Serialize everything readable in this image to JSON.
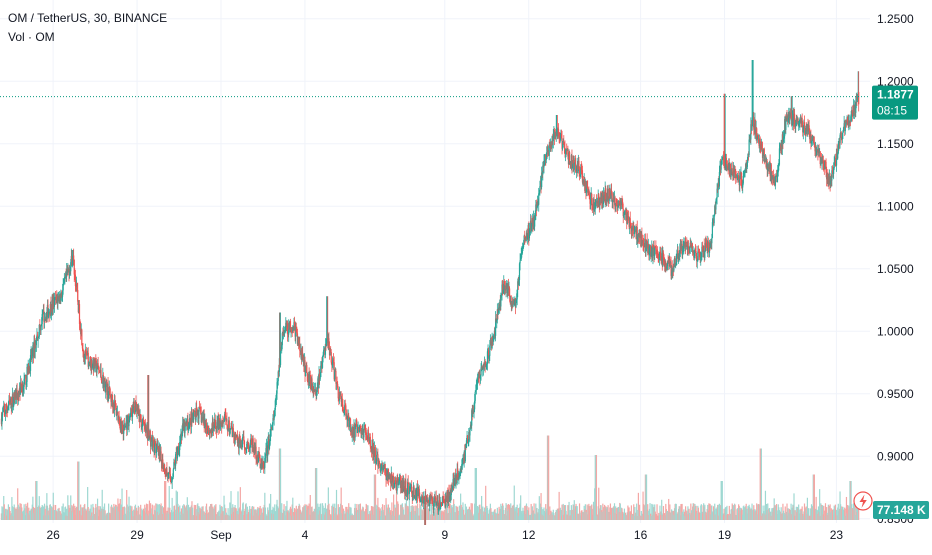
{
  "legend": {
    "symbol_line": "OM / TetherUS, 30, BINANCE",
    "volume_line": "Vol · OM"
  },
  "price_label": {
    "value": "1.1877",
    "countdown": "08:15"
  },
  "volume_label": {
    "value": "77.148 K"
  },
  "colors": {
    "up": "#26a69a",
    "down": "#ef5350",
    "volume_up": "#9fd8d2",
    "volume_down": "#f4a7a5",
    "current_price": "#089981",
    "grid": "#f0f3fa",
    "axis_text": "#131722"
  },
  "chart_data": {
    "type": "candlestick",
    "title": "OM / TetherUS, 30, BINANCE",
    "y_ticks": [
      "1.2500",
      "1.2000",
      "1.1500",
      "1.1000",
      "1.0500",
      "1.0000",
      "0.9500",
      "0.9000",
      "0.8500"
    ],
    "y_tick_values": [
      1.25,
      1.2,
      1.15,
      1.1,
      1.05,
      1.0,
      0.95,
      0.9,
      0.85
    ],
    "ylim": [
      0.825,
      1.265
    ],
    "x_ticks": [
      {
        "label": "26",
        "day": 1.2
      },
      {
        "label": "29",
        "day": 4.2
      },
      {
        "label": "Sep",
        "day": 7.2
      },
      {
        "label": "4",
        "day": 10.2
      },
      {
        "label": "9",
        "day": 15.2
      },
      {
        "label": "12",
        "day": 18.2
      },
      {
        "label": "16",
        "day": 22.2
      },
      {
        "label": "19",
        "day": 25.2
      },
      {
        "label": "23",
        "day": 29.2
      }
    ],
    "x_range_days": [
      -0.7,
      30.4
    ],
    "current_price": 1.1877,
    "grid": true,
    "path_anchors": [
      [
        -0.7,
        0.93
      ],
      [
        0.2,
        0.96
      ],
      [
        0.8,
        1.01
      ],
      [
        1.5,
        1.03
      ],
      [
        1.9,
        1.06
      ],
      [
        2.3,
        0.98
      ],
      [
        2.8,
        0.97
      ],
      [
        3.4,
        0.94
      ],
      [
        3.7,
        0.92
      ],
      [
        4.1,
        0.94
      ],
      [
        4.5,
        0.92
      ],
      [
        4.9,
        0.905
      ],
      [
        5.4,
        0.88
      ],
      [
        5.8,
        0.92
      ],
      [
        6.4,
        0.935
      ],
      [
        6.8,
        0.92
      ],
      [
        7.3,
        0.93
      ],
      [
        7.8,
        0.91
      ],
      [
        8.3,
        0.91
      ],
      [
        8.7,
        0.89
      ],
      [
        9.1,
        0.93
      ],
      [
        9.4,
        1.0
      ],
      [
        9.8,
        1.005
      ],
      [
        10.2,
        0.97
      ],
      [
        10.6,
        0.95
      ],
      [
        11.0,
        0.995
      ],
      [
        11.4,
        0.95
      ],
      [
        11.9,
        0.92
      ],
      [
        12.4,
        0.92
      ],
      [
        12.8,
        0.895
      ],
      [
        13.3,
        0.88
      ],
      [
        13.8,
        0.875
      ],
      [
        14.2,
        0.87
      ],
      [
        14.6,
        0.865
      ],
      [
        15.0,
        0.86
      ],
      [
        15.4,
        0.87
      ],
      [
        15.9,
        0.9
      ],
      [
        16.4,
        0.96
      ],
      [
        16.9,
        0.99
      ],
      [
        17.3,
        1.04
      ],
      [
        17.7,
        1.02
      ],
      [
        18.0,
        1.07
      ],
      [
        18.4,
        1.09
      ],
      [
        18.8,
        1.14
      ],
      [
        19.2,
        1.16
      ],
      [
        19.6,
        1.14
      ],
      [
        20.0,
        1.13
      ],
      [
        20.5,
        1.1
      ],
      [
        21.0,
        1.11
      ],
      [
        21.5,
        1.1
      ],
      [
        22.0,
        1.08
      ],
      [
        22.5,
        1.065
      ],
      [
        22.9,
        1.06
      ],
      [
        23.3,
        1.05
      ],
      [
        23.8,
        1.07
      ],
      [
        24.3,
        1.06
      ],
      [
        24.7,
        1.07
      ],
      [
        25.1,
        1.14
      ],
      [
        25.5,
        1.125
      ],
      [
        25.9,
        1.12
      ],
      [
        26.2,
        1.17
      ],
      [
        26.6,
        1.14
      ],
      [
        27.0,
        1.12
      ],
      [
        27.4,
        1.17
      ],
      [
        27.8,
        1.17
      ],
      [
        28.2,
        1.16
      ],
      [
        28.6,
        1.14
      ],
      [
        29.0,
        1.12
      ],
      [
        29.4,
        1.16
      ],
      [
        29.8,
        1.175
      ],
      [
        30.0,
        1.1877
      ]
    ],
    "spikes": [
      [
        1.9,
        1.065
      ],
      [
        9.3,
        1.015
      ],
      [
        11.0,
        1.028
      ],
      [
        14.5,
        0.845
      ],
      [
        19.2,
        1.173
      ],
      [
        25.2,
        1.19
      ],
      [
        26.2,
        1.217
      ],
      [
        27.6,
        1.188
      ],
      [
        30.0,
        1.208
      ],
      [
        4.6,
        0.965
      ]
    ],
    "volume_spikes": [
      [
        0.6,
        0.3
      ],
      [
        2.1,
        0.45
      ],
      [
        5.2,
        0.3
      ],
      [
        9.3,
        0.55
      ],
      [
        10.6,
        0.4
      ],
      [
        12.7,
        0.35
      ],
      [
        16.3,
        0.4
      ],
      [
        18.9,
        0.65
      ],
      [
        20.6,
        0.5
      ],
      [
        22.4,
        0.35
      ],
      [
        25.1,
        0.3
      ],
      [
        26.5,
        0.55
      ],
      [
        28.4,
        0.35
      ],
      [
        29.7,
        0.3
      ]
    ]
  }
}
